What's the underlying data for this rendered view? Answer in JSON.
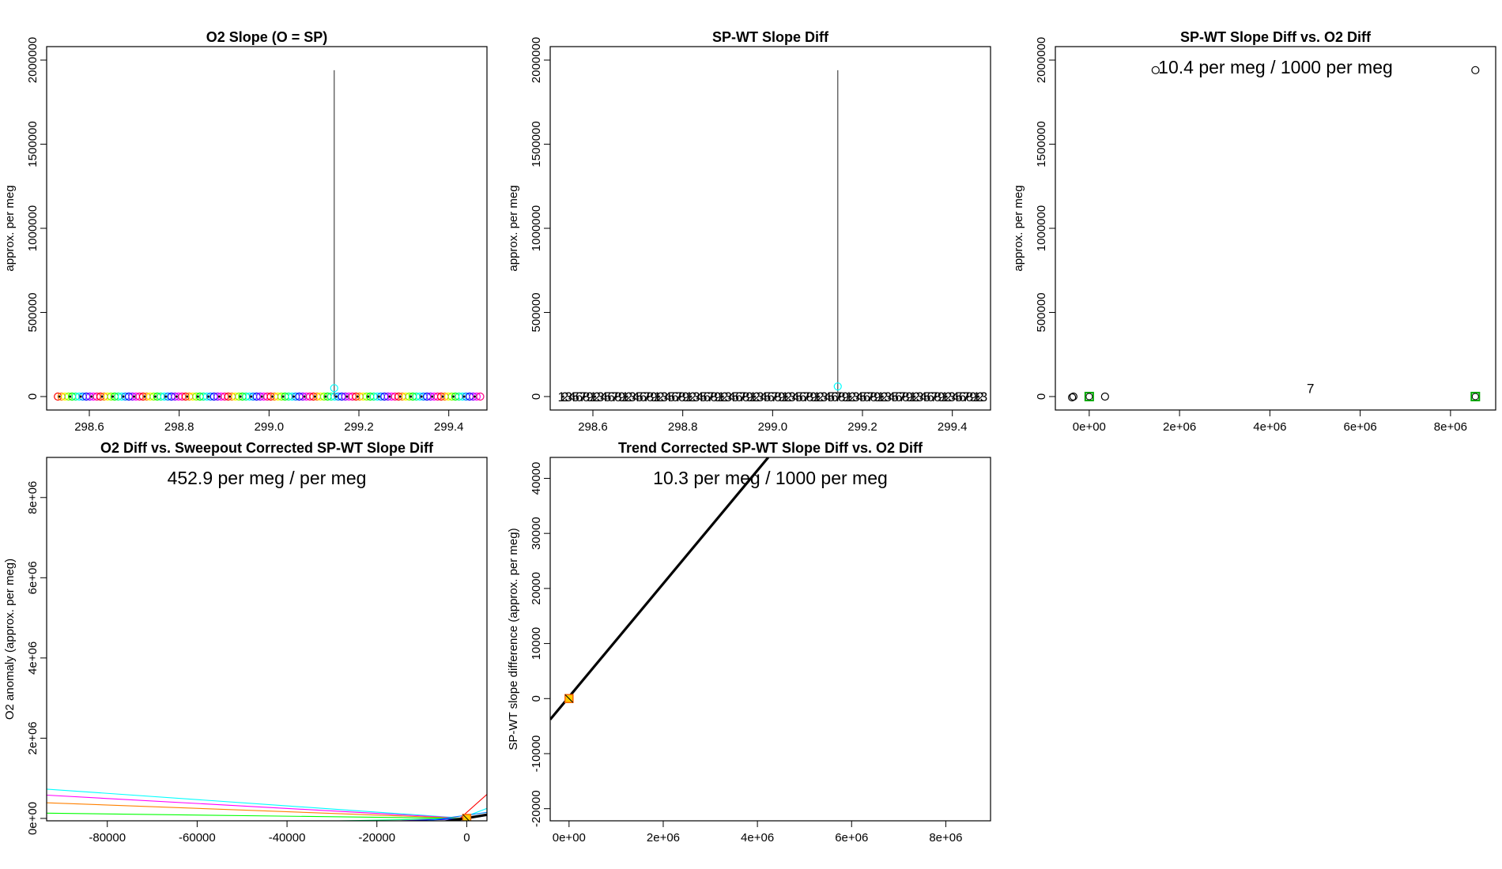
{
  "colors": {
    "rainbow": [
      "#ff0000",
      "#ff8000",
      "#ffff00",
      "#80ff00",
      "#00ff00",
      "#00ff80",
      "#00ffff",
      "#0080ff",
      "#0000ff",
      "#8000ff",
      "#ff00ff",
      "#ff0080"
    ],
    "axis": "#000000",
    "vline": "#555555",
    "fit": "#000000"
  },
  "chart_data": [
    {
      "id": "p1",
      "type": "scatter",
      "title": "O2 Slope (O = SP)",
      "xlabel": "",
      "ylabel": "approx. per meg",
      "xlim": [
        298.505,
        299.485
      ],
      "ylim": [
        -80000,
        2080000
      ],
      "xticks": [
        298.6,
        298.8,
        299.0,
        299.2,
        299.4
      ],
      "xtick_labels": [
        "298.6",
        "298.8",
        "299.0",
        "299.2",
        "299.4"
      ],
      "yticks": [
        0,
        500000,
        1000000,
        1500000,
        2000000
      ],
      "ytick_labels": [
        "0",
        "500000",
        "1000000",
        "1500000",
        "2000000"
      ],
      "series": [
        {
          "name": "O2 slope",
          "x_range": [
            298.53,
            299.47
          ],
          "y": 0,
          "n": 120,
          "glyph": "o"
        }
      ],
      "spike": {
        "x": 299.145,
        "y_from": 0,
        "y_to": 1940000,
        "marker_y": 50000
      },
      "annotation": ""
    },
    {
      "id": "p2",
      "type": "scatter",
      "title": "SP-WT Slope Diff",
      "xlabel": "",
      "ylabel": "approx. per meg",
      "xlim": [
        298.505,
        299.485
      ],
      "ylim": [
        -80000,
        2080000
      ],
      "xticks": [
        298.6,
        298.8,
        299.0,
        299.2,
        299.4
      ],
      "xtick_labels": [
        "298.6",
        "298.8",
        "299.0",
        "299.2",
        "299.4"
      ],
      "yticks": [
        0,
        500000,
        1000000,
        1500000,
        2000000
      ],
      "ytick_labels": [
        "0",
        "500000",
        "1000000",
        "1500000",
        "2000000"
      ],
      "series": [
        {
          "name": "SP-WT slope diff",
          "x_range": [
            298.53,
            299.47
          ],
          "y": 0,
          "n": 120,
          "glyph": "digits"
        }
      ],
      "spike": {
        "x": 299.145,
        "y_from": 0,
        "y_to": 1940000,
        "marker_y": 60000
      },
      "annotation": ""
    },
    {
      "id": "p3",
      "type": "scatter",
      "title": "SP-WT Slope Diff vs. O2 Diff",
      "xlabel": "",
      "ylabel": "approx. per meg",
      "xlim": [
        -750000,
        9000000
      ],
      "ylim": [
        -80000,
        2080000
      ],
      "xticks": [
        0,
        2000000,
        4000000,
        6000000,
        8000000
      ],
      "xtick_labels": [
        "0e+00",
        "2e+06",
        "4e+06",
        "6e+06",
        "8e+06"
      ],
      "yticks": [
        0,
        500000,
        1000000,
        1500000,
        2000000
      ],
      "ytick_labels": [
        "0",
        "500000",
        "1000000",
        "1500000",
        "2000000"
      ],
      "points": [
        {
          "x": -380000,
          "y": -5000,
          "glyph": "o"
        },
        {
          "x": -350000,
          "y": 0,
          "glyph": "o"
        },
        {
          "x": 350000,
          "y": 0,
          "glyph": "o"
        },
        {
          "x": 1470000,
          "y": 1940000,
          "glyph": "o"
        },
        {
          "x": 8550000,
          "y": 1940000,
          "glyph": "o"
        },
        {
          "x": 0,
          "y": 0,
          "glyph": "cluster"
        },
        {
          "x": 8550000,
          "y": 0,
          "glyph": "cluster"
        },
        {
          "x": 4900000,
          "y": 50000,
          "glyph": "7"
        }
      ],
      "annotation": "10.4 per meg / 1000 per meg"
    },
    {
      "id": "p4",
      "type": "line",
      "title": "O2 Diff vs. Sweepout Corrected SP-WT Slope Diff",
      "xlabel": "",
      "ylabel": "O2 anomaly (approx. per meg)",
      "xlim": [
        -93500,
        4500
      ],
      "ylim": [
        -60000,
        9000000
      ],
      "xticks": [
        -80000,
        -60000,
        -40000,
        -20000,
        0
      ],
      "xtick_labels": [
        "-80000",
        "-60000",
        "-40000",
        "-20000",
        "0"
      ],
      "yticks": [
        0,
        2000000,
        4000000,
        6000000,
        8000000
      ],
      "ytick_labels": [
        "0e+00",
        "2e+06",
        "4e+06",
        "6e+06",
        "8e+06"
      ],
      "fan_lines": [
        {
          "x0": -93500,
          "y0": 730000,
          "x1": 0,
          "y1": 0,
          "color": "#00ffff"
        },
        {
          "x0": -93500,
          "y0": 580000,
          "x1": 0,
          "y1": 0,
          "color": "#ff00ff"
        },
        {
          "x0": -93500,
          "y0": 390000,
          "x1": 0,
          "y1": 0,
          "color": "#ff8000"
        },
        {
          "x0": -93500,
          "y0": 130000,
          "x1": 0,
          "y1": 0,
          "color": "#00ff00"
        },
        {
          "x0": -93500,
          "y0": -200000,
          "x1": 0,
          "y1": 0,
          "color": "#00ff80"
        },
        {
          "x0": -93500,
          "y0": -380000,
          "x1": 0,
          "y1": 0,
          "color": "#8000ff"
        },
        {
          "x0": -93500,
          "y0": -450000,
          "x1": 0,
          "y1": 0,
          "color": "#0000ff"
        },
        {
          "x0": -6000,
          "y0": -200000,
          "x1": 4500,
          "y1": 250000,
          "color": "#00ffff"
        },
        {
          "x0": -3500,
          "y0": -200000,
          "x1": 4500,
          "y1": 600000,
          "color": "#ff0000"
        },
        {
          "x0": -9000,
          "y0": -60000,
          "x1": 4500,
          "y1": 150000,
          "color": "#0080ff"
        }
      ],
      "fit_line": {
        "x0": -93500,
        "y0": -1700000,
        "x1": 4500,
        "y1": 90000
      },
      "cluster": {
        "x": 0,
        "y": 0
      },
      "annotation": "452.9 per meg / per meg"
    },
    {
      "id": "p5",
      "type": "line",
      "title": "Trend Corrected SP-WT Slope Diff vs. O2 Diff",
      "xlabel": "",
      "ylabel": "SP-WT slope difference (approx. per meg)",
      "xlim": [
        -400000,
        8950000
      ],
      "ylim": [
        -22200,
        43800
      ],
      "xticks": [
        0,
        2000000,
        4000000,
        6000000,
        8000000
      ],
      "xtick_labels": [
        "0e+00",
        "2e+06",
        "4e+06",
        "6e+06",
        "8e+06"
      ],
      "yticks": [
        -20000,
        -10000,
        0,
        10000,
        20000,
        30000,
        40000
      ],
      "ytick_labels": [
        "-20000",
        "-10000",
        "0",
        "10000",
        "20000",
        "30000",
        "40000"
      ],
      "fit_line": {
        "x0": -400000,
        "y0": -3800,
        "x1": 4230000,
        "y1": 43800
      },
      "cluster": {
        "x": 0,
        "y": 0
      },
      "annotation": "10.3 per meg / 1000 per meg"
    }
  ]
}
